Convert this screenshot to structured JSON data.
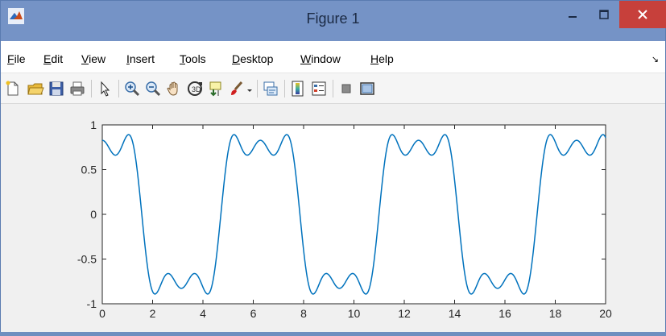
{
  "window": {
    "title": "Figure 1",
    "accent": "#7593c6",
    "close_color": "#c7403b"
  },
  "menu": {
    "items": [
      {
        "id": "file",
        "accel": "F",
        "rest": "ile"
      },
      {
        "id": "edit",
        "accel": "E",
        "rest": "dit"
      },
      {
        "id": "view",
        "accel": "V",
        "rest": "iew"
      },
      {
        "id": "insert",
        "accel": "I",
        "rest": "nsert"
      },
      {
        "id": "tools",
        "accel": "T",
        "rest": "ools"
      },
      {
        "id": "desktop",
        "accel": "D",
        "rest": "esktop"
      },
      {
        "id": "window",
        "accel": "W",
        "rest": "indow"
      },
      {
        "id": "help",
        "accel": "H",
        "rest": "elp"
      }
    ]
  },
  "toolbar": {
    "icons": [
      "new-figure-icon",
      "open-file-icon",
      "save-icon",
      "print-icon",
      "pointer-icon",
      "zoom-in-icon",
      "zoom-out-icon",
      "pan-hand-icon",
      "rotate-3d-icon",
      "data-cursor-icon",
      "brush-icon",
      "brush-dropdown-icon",
      "link-plot-icon",
      "colorbar-icon",
      "legend-icon",
      "hide-plot-tools-icon",
      "show-plot-tools-icon"
    ]
  },
  "chart_data": {
    "type": "line",
    "title": "",
    "xlabel": "",
    "ylabel": "",
    "xlim": [
      0,
      20
    ],
    "ylim": [
      -1,
      1
    ],
    "xticks": [
      0,
      2,
      4,
      6,
      8,
      10,
      12,
      14,
      16,
      18,
      20
    ],
    "yticks": [
      -1,
      -0.5,
      0,
      0.5,
      1
    ],
    "ytick_labels": [
      "-1",
      "-0.5",
      "0",
      "0.5",
      "1"
    ],
    "grid": false,
    "series": [
      {
        "color": "#0072bd",
        "function": "(4/pi)*0.75*(sin(x')+sin(3x')/3+sin(5x')/5), x' = x + pi/2",
        "x_start": 0,
        "x_end": 20,
        "samples": 801
      }
    ]
  }
}
